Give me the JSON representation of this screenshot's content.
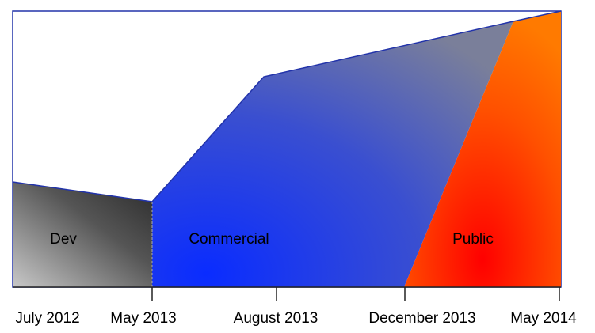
{
  "phases": [
    {
      "label": "Dev"
    },
    {
      "label": "Commercial"
    },
    {
      "label": "Public"
    }
  ],
  "timeline": [
    "July 2012",
    "May 2013",
    "August 2013",
    "December 2013",
    "May 2014"
  ]
}
